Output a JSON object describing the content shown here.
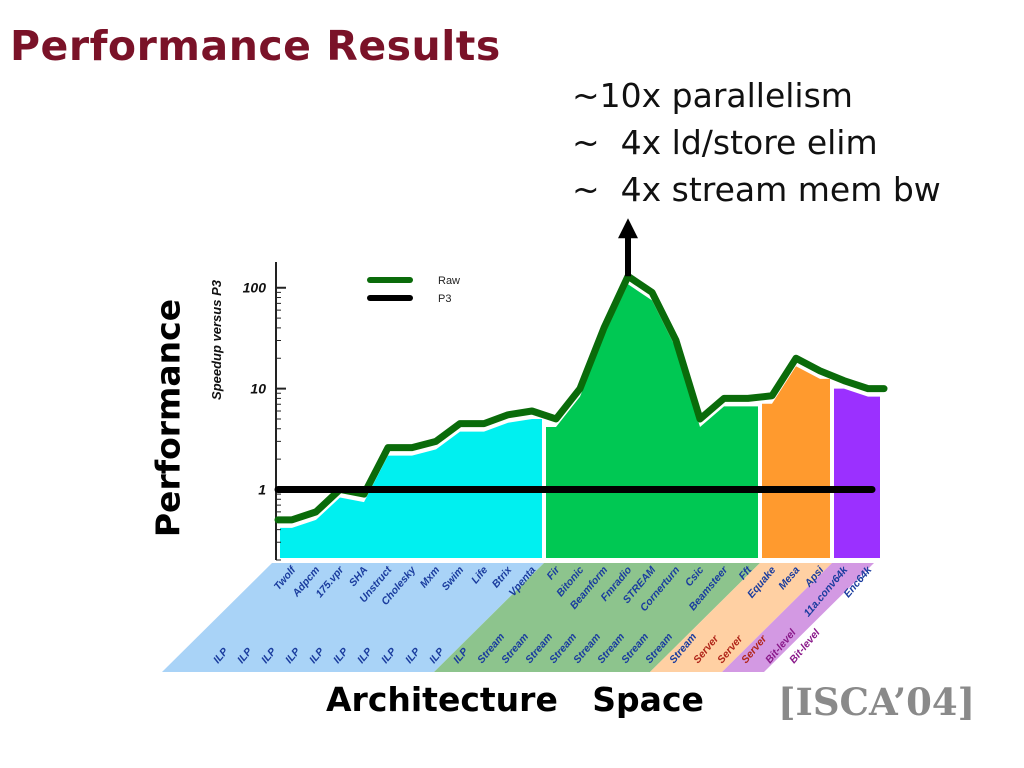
{
  "slide": {
    "title": "Performance Results",
    "notes": [
      "~10x parallelism",
      "~  4x ld/store elim",
      "~  4x stream mem bw"
    ],
    "performance_label": "Performance",
    "architecture_label": "Architecture   Space",
    "citation": "[ISCA’04]"
  },
  "colors": {
    "title": "#7a1228",
    "ilp": "#00f0f0",
    "stream": "#00c853",
    "server": "#ff9a2e",
    "bitlevel": "#9b30ff",
    "raw_line": "#0a6b0a",
    "p3_line": "#000000"
  },
  "chart_data": {
    "type": "area",
    "ylabel": "Speedup versus P3",
    "yscale": "log",
    "ylim": [
      0.2,
      180
    ],
    "yticks": [
      {
        "value": 1,
        "label": "1"
      },
      {
        "value": 10,
        "label": "10"
      },
      {
        "value": 100,
        "label": "100"
      }
    ],
    "legend": {
      "position": "top-left",
      "entries": [
        "Raw",
        "P3"
      ]
    },
    "categories": [
      "Twolf",
      "Adpcm",
      "175.vpr",
      "SHA",
      "Unstruct",
      "Cholesky",
      "Mxm",
      "Swim",
      "Life",
      "Btrix",
      "Vpenta",
      "Fir",
      "Bitonic",
      "Beamform",
      "Fmradio",
      "STREAM",
      "Cornerturn",
      "Csic",
      "Beamsteer",
      "Fft",
      "Equake",
      "Mesa",
      "Apsi",
      "11a.conv64k",
      "Enc64k"
    ],
    "classes": [
      "ILP",
      "ILP",
      "ILP",
      "ILP",
      "ILP",
      "ILP",
      "ILP",
      "ILP",
      "ILP",
      "ILP",
      "ILP",
      "Stream",
      "Stream",
      "Stream",
      "Stream",
      "Stream",
      "Stream",
      "Stream",
      "Stream",
      "Stream",
      "Server",
      "Server",
      "Server",
      "Bit-level",
      "Bit-level"
    ],
    "groups": [
      {
        "name": "ILP",
        "start": 0,
        "end": 10
      },
      {
        "name": "Stream",
        "start": 11,
        "end": 19
      },
      {
        "name": "Server",
        "start": 20,
        "end": 22
      },
      {
        "name": "Bit-level",
        "start": 23,
        "end": 24
      }
    ],
    "series": [
      {
        "name": "Raw",
        "values": [
          0.5,
          0.6,
          1.0,
          0.9,
          2.6,
          2.6,
          3.0,
          4.5,
          4.5,
          5.5,
          6.0,
          5.0,
          10.0,
          40.0,
          130.0,
          90.0,
          30.0,
          5.0,
          8.0,
          8.0,
          8.5,
          20.0,
          15.0,
          12.0,
          10.0
        ]
      },
      {
        "name": "P3",
        "values": [
          1,
          1,
          1,
          1,
          1,
          1,
          1,
          1,
          1,
          1,
          1,
          1,
          1,
          1,
          1,
          1,
          1,
          1,
          1,
          1,
          1,
          1,
          1,
          1,
          1
        ]
      }
    ]
  }
}
